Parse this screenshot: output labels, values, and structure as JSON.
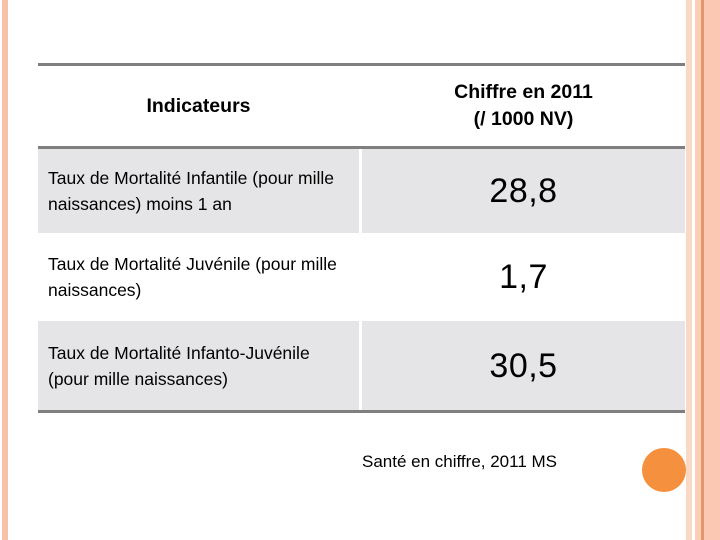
{
  "slide": {
    "footer": {
      "source": "Santé en chiffre, 2011 MS"
    },
    "colors": {
      "accent_circle": "#f5913e",
      "stripe_left": "#f6c2aa",
      "stripe_right_1": "#fad8c6",
      "stripe_right_2": "#fbceba",
      "stripe_right_3": "#e2986a",
      "stripe_right_4": "#fbc9b3",
      "row_band_gray": "#e5e5e7",
      "rule_gray": "#7f7f7f"
    }
  },
  "table": {
    "header": {
      "indicators_label": "Indicateurs",
      "value_label_line1": "Chiffre en 2011",
      "value_label_line2": "(/ 1000 NV)"
    },
    "rows": [
      {
        "indicator": "Taux de Mortalité Infantile (pour mille naissances) moins 1 an",
        "value": "28,8"
      },
      {
        "indicator": "Taux de Mortalité Juvénile (pour mille naissances)",
        "value": "1,7"
      },
      {
        "indicator": "Taux de Mortalité Infanto-Juvénile (pour mille naissances)",
        "value": "30,5"
      }
    ]
  }
}
